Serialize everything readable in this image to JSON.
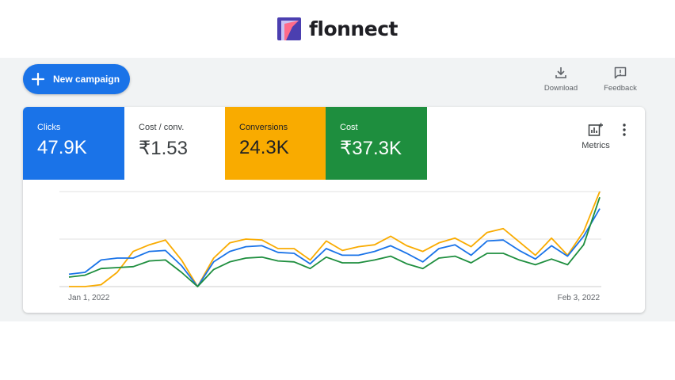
{
  "brand": {
    "name": "flonnect"
  },
  "toolbar": {
    "new_campaign_label": "New campaign",
    "download_label": "Download",
    "feedback_label": "Feedback"
  },
  "tiles": [
    {
      "label": "Clicks",
      "value": "47.9K",
      "color": "#1a73e8"
    },
    {
      "label": "Cost / conv.",
      "value": "₹1.53",
      "color": "#ffffff"
    },
    {
      "label": "Conversions",
      "value": "24.3K",
      "color": "#f9ab00"
    },
    {
      "label": "Cost",
      "value": "₹37.3K",
      "color": "#1e8e3e"
    }
  ],
  "metrics_label": "Metrics",
  "chart_data": {
    "type": "line",
    "x_labels": [
      "Jan 1, 2022",
      "Feb 3, 2022"
    ],
    "grid": true,
    "series": [
      {
        "color": "#f9ab00",
        "values": [
          0,
          0,
          2,
          15,
          37,
          44,
          49,
          28,
          0,
          30,
          46,
          50,
          49,
          40,
          40,
          28,
          48,
          38,
          42,
          44,
          53,
          43,
          37,
          46,
          51,
          42,
          57,
          61,
          47,
          33,
          51,
          33,
          58,
          100
        ]
      },
      {
        "color": "#1a73e8",
        "values": [
          13,
          15,
          28,
          30,
          30,
          37,
          38,
          22,
          0,
          26,
          37,
          42,
          43,
          36,
          35,
          24,
          40,
          33,
          33,
          37,
          43,
          35,
          26,
          40,
          44,
          33,
          48,
          49,
          38,
          29,
          43,
          32,
          53,
          82
        ]
      },
      {
        "color": "#1e8e3e",
        "values": [
          10,
          12,
          19,
          20,
          21,
          27,
          28,
          15,
          0,
          18,
          26,
          30,
          31,
          27,
          26,
          19,
          31,
          25,
          25,
          28,
          32,
          24,
          19,
          30,
          32,
          25,
          35,
          35,
          28,
          23,
          29,
          23,
          44,
          94
        ]
      }
    ]
  }
}
